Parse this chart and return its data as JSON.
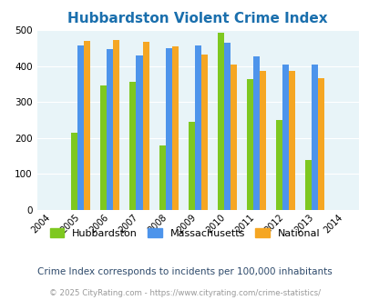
{
  "title": "Hubbardston Violent Crime Index",
  "years": [
    2005,
    2006,
    2007,
    2008,
    2009,
    2010,
    2011,
    2012,
    2013
  ],
  "hubbardston": [
    215,
    347,
    357,
    180,
    245,
    492,
    363,
    250,
    140
  ],
  "massachusetts": [
    458,
    447,
    430,
    450,
    458,
    465,
    428,
    405,
    405
  ],
  "national": [
    469,
    473,
    467,
    455,
    432,
    405,
    387,
    387,
    366
  ],
  "color_hubbardston": "#7ec820",
  "color_massachusetts": "#4d94eb",
  "color_national": "#f5a623",
  "background_plot": "#e8f4f8",
  "background_fig": "#ffffff",
  "xlim": [
    2003.5,
    2014.5
  ],
  "ylim": [
    0,
    500
  ],
  "yticks": [
    0,
    100,
    200,
    300,
    400,
    500
  ],
  "title_color": "#1a6fad",
  "legend_labels": [
    "Hubbardston",
    "Massachusetts",
    "National"
  ],
  "subtitle": "Crime Index corresponds to incidents per 100,000 inhabitants",
  "caption": "© 2025 CityRating.com - https://www.cityrating.com/crime-statistics/",
  "bar_width": 0.22,
  "subtitle_color": "#2e4a6b",
  "caption_color": "#999999",
  "title_fontsize": 11,
  "tick_fontsize": 7,
  "ytick_fontsize": 7.5
}
